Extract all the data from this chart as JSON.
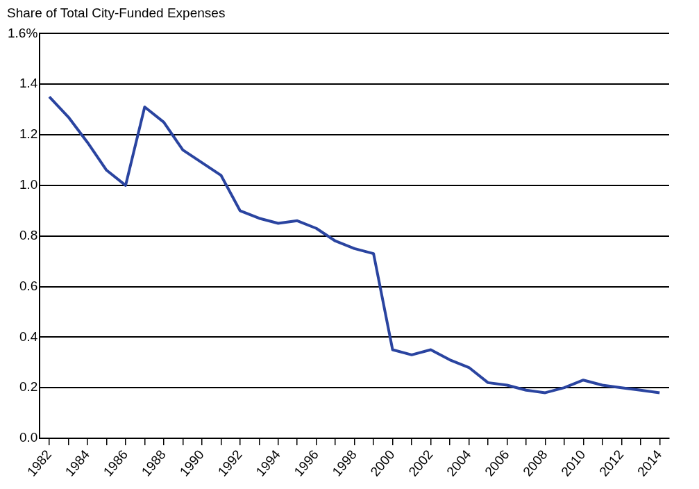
{
  "chart_data": {
    "type": "line",
    "ylabel": "Share of Total City-Funded Expenses",
    "x": [
      1982,
      1983,
      1984,
      1985,
      1986,
      1987,
      1988,
      1989,
      1990,
      1991,
      1992,
      1993,
      1994,
      1995,
      1996,
      1997,
      1998,
      1999,
      2000,
      2001,
      2002,
      2003,
      2004,
      2005,
      2006,
      2007,
      2008,
      2009,
      2010,
      2011,
      2012,
      2013,
      2014
    ],
    "series": [
      {
        "color": "#2a44a0",
        "values": [
          1.35,
          1.27,
          1.17,
          1.06,
          1.0,
          1.31,
          1.25,
          1.14,
          1.09,
          1.04,
          0.9,
          0.87,
          0.85,
          0.86,
          0.83,
          0.78,
          0.75,
          0.73,
          0.35,
          0.33,
          0.35,
          0.31,
          0.28,
          0.22,
          0.21,
          0.19,
          0.18,
          0.2,
          0.23,
          0.21,
          0.2,
          0.19,
          0.18
        ]
      }
    ],
    "xlim": [
      1981.5,
      2014.5
    ],
    "xticks": [
      1982,
      {
        "value": 1983,
        "label": null
      },
      1984,
      {
        "value": 1985,
        "label": null
      },
      1986,
      {
        "value": 1987,
        "label": null
      },
      1988,
      {
        "value": 1989,
        "label": null
      },
      1990,
      {
        "value": 1991,
        "label": null
      },
      1992,
      {
        "value": 1993,
        "label": null
      },
      1994,
      {
        "value": 1995,
        "label": null
      },
      1996,
      {
        "value": 1997,
        "label": null
      },
      1998,
      {
        "value": 1999,
        "label": null
      },
      2000,
      {
        "value": 2001,
        "label": null
      },
      2002,
      {
        "value": 2003,
        "label": null
      },
      2004,
      {
        "value": 2005,
        "label": null
      },
      2006,
      {
        "value": 2007,
        "label": null
      },
      2008,
      {
        "value": 2009,
        "label": null
      },
      2010,
      {
        "value": 2011,
        "label": null
      },
      2012,
      {
        "value": 2013,
        "label": null
      },
      2014
    ],
    "ylim": [
      0,
      1.6
    ],
    "yticks": [
      {
        "value": 0,
        "label": "0.0"
      },
      {
        "value": 0.2,
        "label": "0.2"
      },
      {
        "value": 0.4,
        "label": "0.4"
      },
      {
        "value": 0.6,
        "label": "0.6"
      },
      {
        "value": 0.8,
        "label": "0.8"
      },
      {
        "value": 1.0,
        "label": "1.0"
      },
      {
        "value": 1.2,
        "label": "1.2"
      },
      {
        "value": 1.4,
        "label": "1.4"
      },
      {
        "value": 1.6,
        "label": "1.6%"
      }
    ],
    "grid": "y",
    "legend": false,
    "marker": "none",
    "line_style": "solid"
  }
}
